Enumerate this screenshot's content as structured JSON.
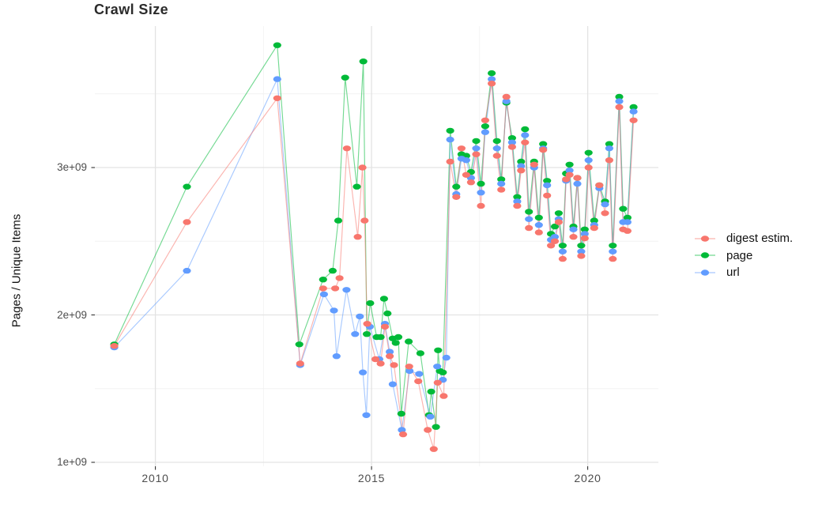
{
  "title": "Crawl Size",
  "axes": {
    "y_label": "Pages / Unique Items",
    "y_ticks": [
      {
        "label": "1e+09",
        "value": 1
      },
      {
        "label": "2e+09",
        "value": 2
      },
      {
        "label": "3e+09",
        "value": 3
      }
    ],
    "x_ticks": [
      {
        "label": "2010",
        "value": 2010
      },
      {
        "label": "2015",
        "value": 2015
      },
      {
        "label": "2020",
        "value": 2020
      }
    ]
  },
  "legend": {
    "items": [
      {
        "id": "digest-estim",
        "label": "digest estim.",
        "color": "#F8766D"
      },
      {
        "id": "page",
        "label": "page",
        "color": "#00BA38"
      },
      {
        "id": "url",
        "label": "url",
        "color": "#619CFF"
      }
    ]
  },
  "colors": {
    "digest_estim": "#F8766D",
    "page": "#00BA38",
    "url": "#619CFF",
    "grid_major": "#E3E3E3",
    "grid_minor": "#F2F2F2",
    "tick_text": "#4d4d4d",
    "axis_tick": "#333333",
    "background": "#ffffff"
  },
  "chart_data": {
    "type": "line",
    "title": "Crawl Size",
    "xlabel": "",
    "ylabel": "Pages / Unique Items",
    "y_unit_multiplier": 1000000000.0,
    "x_range": [
      2008.6,
      2021.64
    ],
    "y_range": [
      1.0,
      3.97
    ],
    "y_major_ticks": [
      1,
      2,
      3
    ],
    "y_minor_ticks": [
      1.5,
      2.5,
      3.5
    ],
    "x_major_ticks": [
      2010,
      2015,
      2020
    ],
    "x_minor_ticks": [
      2012.5,
      2017.5
    ],
    "grid": true,
    "legend_position": "right",
    "marker": "ellipse-dot",
    "series": [
      {
        "id": "digest-estim",
        "name": "digest estim.",
        "color": "#F8766D",
        "points": [
          [
            2009.05,
            1.79
          ],
          [
            2010.73,
            2.63
          ],
          [
            2012.82,
            3.47
          ],
          [
            2013.35,
            1.67
          ],
          [
            2013.88,
            2.18
          ],
          [
            2014.16,
            2.18
          ],
          [
            2014.26,
            2.25
          ],
          [
            2014.43,
            3.13
          ],
          [
            2014.68,
            2.53
          ],
          [
            2014.79,
            3.0
          ],
          [
            2014.84,
            2.64
          ],
          [
            2014.9,
            1.94
          ],
          [
            2015.09,
            1.7
          ],
          [
            2015.21,
            1.67
          ],
          [
            2015.31,
            1.92
          ],
          [
            2015.42,
            1.72
          ],
          [
            2015.52,
            1.66
          ],
          [
            2015.73,
            1.19
          ],
          [
            2015.87,
            1.65
          ],
          [
            2016.08,
            1.55
          ],
          [
            2016.3,
            1.22
          ],
          [
            2016.44,
            1.09
          ],
          [
            2016.53,
            1.54
          ],
          [
            2016.67,
            1.45
          ],
          [
            2016.82,
            3.04
          ],
          [
            2016.96,
            2.8
          ],
          [
            2017.08,
            3.13
          ],
          [
            2017.19,
            2.95
          ],
          [
            2017.3,
            2.9
          ],
          [
            2017.42,
            3.09
          ],
          [
            2017.53,
            2.74
          ],
          [
            2017.63,
            3.32
          ],
          [
            2017.78,
            3.57
          ],
          [
            2017.9,
            3.08
          ],
          [
            2018.0,
            2.85
          ],
          [
            2018.12,
            3.48
          ],
          [
            2018.25,
            3.14
          ],
          [
            2018.37,
            2.74
          ],
          [
            2018.46,
            2.98
          ],
          [
            2018.55,
            3.17
          ],
          [
            2018.64,
            2.59
          ],
          [
            2018.76,
            3.02
          ],
          [
            2018.87,
            2.56
          ],
          [
            2018.97,
            3.12
          ],
          [
            2019.06,
            2.81
          ],
          [
            2019.15,
            2.47
          ],
          [
            2019.24,
            2.5
          ],
          [
            2019.33,
            2.63
          ],
          [
            2019.42,
            2.38
          ],
          [
            2019.5,
            2.92
          ],
          [
            2019.58,
            2.95
          ],
          [
            2019.67,
            2.53
          ],
          [
            2019.76,
            2.93
          ],
          [
            2019.85,
            2.4
          ],
          [
            2019.93,
            2.52
          ],
          [
            2020.02,
            3.0
          ],
          [
            2020.15,
            2.59
          ],
          [
            2020.27,
            2.88
          ],
          [
            2020.4,
            2.69
          ],
          [
            2020.5,
            3.05
          ],
          [
            2020.58,
            2.38
          ],
          [
            2020.73,
            3.41
          ],
          [
            2020.82,
            2.58
          ],
          [
            2020.92,
            2.57
          ],
          [
            2021.06,
            3.32
          ]
        ]
      },
      {
        "id": "page",
        "name": "page",
        "color": "#00BA38",
        "points": [
          [
            2009.05,
            1.8
          ],
          [
            2010.73,
            2.87
          ],
          [
            2012.82,
            3.83
          ],
          [
            2013.33,
            1.8
          ],
          [
            2013.88,
            2.24
          ],
          [
            2014.1,
            2.3
          ],
          [
            2014.23,
            2.64
          ],
          [
            2014.39,
            3.61
          ],
          [
            2014.66,
            2.87
          ],
          [
            2014.81,
            3.72
          ],
          [
            2014.89,
            1.87
          ],
          [
            2014.97,
            2.08
          ],
          [
            2015.12,
            1.85
          ],
          [
            2015.21,
            1.85
          ],
          [
            2015.29,
            2.11
          ],
          [
            2015.37,
            2.01
          ],
          [
            2015.49,
            1.84
          ],
          [
            2015.56,
            1.81
          ],
          [
            2015.62,
            1.85
          ],
          [
            2015.69,
            1.33
          ],
          [
            2015.86,
            1.82
          ],
          [
            2016.13,
            1.74
          ],
          [
            2016.33,
            1.32
          ],
          [
            2016.38,
            1.48
          ],
          [
            2016.49,
            1.24
          ],
          [
            2016.54,
            1.76
          ],
          [
            2016.58,
            1.62
          ],
          [
            2016.65,
            1.61
          ],
          [
            2016.82,
            3.25
          ],
          [
            2016.96,
            2.87
          ],
          [
            2017.08,
            3.09
          ],
          [
            2017.19,
            3.08
          ],
          [
            2017.3,
            2.97
          ],
          [
            2017.42,
            3.18
          ],
          [
            2017.53,
            2.89
          ],
          [
            2017.63,
            3.28
          ],
          [
            2017.78,
            3.64
          ],
          [
            2017.9,
            3.18
          ],
          [
            2018.0,
            2.92
          ],
          [
            2018.12,
            3.44
          ],
          [
            2018.25,
            3.2
          ],
          [
            2018.37,
            2.8
          ],
          [
            2018.46,
            3.04
          ],
          [
            2018.55,
            3.26
          ],
          [
            2018.64,
            2.7
          ],
          [
            2018.76,
            3.04
          ],
          [
            2018.87,
            2.66
          ],
          [
            2018.97,
            3.16
          ],
          [
            2019.06,
            2.91
          ],
          [
            2019.15,
            2.55
          ],
          [
            2019.24,
            2.6
          ],
          [
            2019.33,
            2.69
          ],
          [
            2019.42,
            2.47
          ],
          [
            2019.5,
            2.96
          ],
          [
            2019.58,
            3.02
          ],
          [
            2019.67,
            2.6
          ],
          [
            2019.76,
            2.93
          ],
          [
            2019.85,
            2.47
          ],
          [
            2019.93,
            2.58
          ],
          [
            2020.02,
            3.1
          ],
          [
            2020.15,
            2.64
          ],
          [
            2020.27,
            2.88
          ],
          [
            2020.4,
            2.77
          ],
          [
            2020.5,
            3.16
          ],
          [
            2020.58,
            2.47
          ],
          [
            2020.73,
            3.48
          ],
          [
            2020.82,
            2.72
          ],
          [
            2020.92,
            2.66
          ],
          [
            2021.06,
            3.41
          ]
        ]
      },
      {
        "id": "url",
        "name": "url",
        "color": "#619CFF",
        "points": [
          [
            2009.05,
            1.78
          ],
          [
            2010.73,
            2.3
          ],
          [
            2012.82,
            3.6
          ],
          [
            2013.35,
            1.66
          ],
          [
            2013.9,
            2.14
          ],
          [
            2014.13,
            2.03
          ],
          [
            2014.19,
            1.72
          ],
          [
            2014.42,
            2.17
          ],
          [
            2014.62,
            1.87
          ],
          [
            2014.73,
            1.99
          ],
          [
            2014.8,
            1.61
          ],
          [
            2014.88,
            1.32
          ],
          [
            2014.96,
            1.92
          ],
          [
            2015.18,
            1.7
          ],
          [
            2015.31,
            1.94
          ],
          [
            2015.42,
            1.75
          ],
          [
            2015.49,
            1.53
          ],
          [
            2015.7,
            1.22
          ],
          [
            2015.88,
            1.62
          ],
          [
            2016.1,
            1.6
          ],
          [
            2016.36,
            1.31
          ],
          [
            2016.52,
            1.65
          ],
          [
            2016.65,
            1.56
          ],
          [
            2016.73,
            1.71
          ],
          [
            2016.82,
            3.19
          ],
          [
            2016.96,
            2.82
          ],
          [
            2017.08,
            3.06
          ],
          [
            2017.19,
            3.05
          ],
          [
            2017.3,
            2.93
          ],
          [
            2017.42,
            3.13
          ],
          [
            2017.53,
            2.83
          ],
          [
            2017.63,
            3.24
          ],
          [
            2017.78,
            3.6
          ],
          [
            2017.9,
            3.13
          ],
          [
            2018.0,
            2.89
          ],
          [
            2018.12,
            3.45
          ],
          [
            2018.25,
            3.17
          ],
          [
            2018.37,
            2.77
          ],
          [
            2018.46,
            3.01
          ],
          [
            2018.55,
            3.22
          ],
          [
            2018.64,
            2.65
          ],
          [
            2018.76,
            3.0
          ],
          [
            2018.87,
            2.61
          ],
          [
            2018.97,
            3.13
          ],
          [
            2019.06,
            2.88
          ],
          [
            2019.15,
            2.51
          ],
          [
            2019.24,
            2.53
          ],
          [
            2019.33,
            2.65
          ],
          [
            2019.42,
            2.43
          ],
          [
            2019.5,
            2.91
          ],
          [
            2019.58,
            2.98
          ],
          [
            2019.67,
            2.58
          ],
          [
            2019.76,
            2.89
          ],
          [
            2019.85,
            2.43
          ],
          [
            2019.93,
            2.55
          ],
          [
            2020.02,
            3.05
          ],
          [
            2020.15,
            2.61
          ],
          [
            2020.27,
            2.86
          ],
          [
            2020.4,
            2.75
          ],
          [
            2020.5,
            3.13
          ],
          [
            2020.58,
            2.43
          ],
          [
            2020.73,
            3.45
          ],
          [
            2020.82,
            2.63
          ],
          [
            2020.92,
            2.63
          ],
          [
            2021.06,
            3.38
          ]
        ]
      }
    ]
  }
}
